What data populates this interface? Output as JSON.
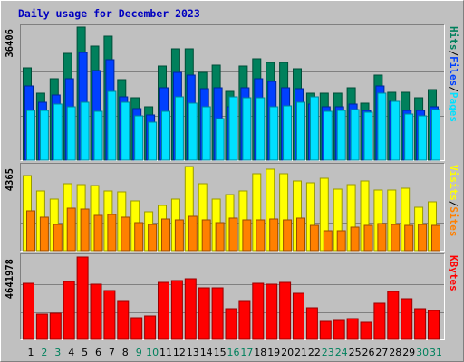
{
  "title": "Daily usage for December 2023",
  "legend_separator": "/",
  "chart_data": [
    {
      "type": "bar",
      "ylim": [
        0,
        36406
      ],
      "yticks": [
        36406
      ],
      "grid": true,
      "series": [
        {
          "name": "Hits",
          "color": "#00805c",
          "values": [
            25262,
            18327,
            22289,
            29224,
            36406,
            31205,
            33929,
            22042,
            17088,
            14612,
            25756,
            30462,
            30462,
            24023,
            26004,
            18822,
            25756,
            27738,
            26747,
            26747,
            25014,
            18327,
            18327,
            18327,
            19813,
            15602,
            23280,
            18574,
            18574,
            17088,
            19317
          ]
        },
        {
          "name": "Files",
          "color": "#0040ff",
          "values": [
            20308,
            15850,
            17832,
            22289,
            29472,
            24518,
            27490,
            17336,
            14117,
            12383,
            19813,
            24023,
            23280,
            19565,
            19813,
            14612,
            19813,
            22289,
            21546,
            19813,
            19565,
            15355,
            14612,
            14612,
            15355,
            13621,
            20308,
            16098,
            13621,
            13621,
            14612
          ]
        },
        {
          "name": "Pages",
          "color": "#00e0ff",
          "values": [
            13621,
            13621,
            15355,
            14612,
            15850,
            13374,
            18822,
            15850,
            12135,
            10402,
            13374,
            17336,
            15602,
            14612,
            11392,
            17336,
            17088,
            17088,
            14612,
            14860,
            15850,
            17336,
            13374,
            13621,
            13869,
            13126,
            18327,
            16098,
            12631,
            12135,
            13869
          ]
        }
      ]
    },
    {
      "type": "bar",
      "ylim": [
        0,
        4365
      ],
      "yticks": [
        4365
      ],
      "grid": true,
      "series": [
        {
          "name": "Visits",
          "color": "#ffff00",
          "values": [
            3896,
            3098,
            2676,
            3473,
            3426,
            3380,
            3098,
            3051,
            2582,
            2018,
            2347,
            2676,
            4365,
            3473,
            2676,
            2910,
            3098,
            3990,
            4225,
            3990,
            3614,
            3520,
            3755,
            3192,
            3426,
            3614,
            3145,
            3145,
            3239,
            2253,
            2535
          ]
        },
        {
          "name": "Sites",
          "color": "#ff8000",
          "values": [
            2065,
            1737,
            1361,
            2206,
            2159,
            1831,
            1878,
            1737,
            1455,
            1361,
            1643,
            1596,
            1784,
            1596,
            1455,
            1690,
            1596,
            1596,
            1643,
            1596,
            1690,
            1314,
            1033,
            1033,
            1220,
            1314,
            1408,
            1361,
            1314,
            1361,
            1314
          ]
        }
      ]
    },
    {
      "type": "bar",
      "ylim": [
        0,
        4641978
      ],
      "yticks": [
        4641978
      ],
      "grid": true,
      "categories": [
        "1",
        "2",
        "3",
        "4",
        "5",
        "6",
        "7",
        "8",
        "9",
        "10",
        "11",
        "12",
        "13",
        "14",
        "15",
        "16",
        "17",
        "18",
        "19",
        "20",
        "21",
        "22",
        "23",
        "24",
        "25",
        "26",
        "27",
        "28",
        "29",
        "30",
        "31"
      ],
      "category_colors": [
        "#000000",
        "#00805c",
        "#00805c",
        "#000000",
        "#000000",
        "#000000",
        "#000000",
        "#000000",
        "#00805c",
        "#00805c",
        "#000000",
        "#000000",
        "#000000",
        "#000000",
        "#000000",
        "#00805c",
        "#00805c",
        "#000000",
        "#000000",
        "#000000",
        "#000000",
        "#000000",
        "#00805c",
        "#00805c",
        "#000000",
        "#000000",
        "#000000",
        "#000000",
        "#000000",
        "#00805c",
        "#00805c"
      ],
      "series": [
        {
          "name": "KBytes",
          "color": "#ff0000",
          "values": [
            3162682,
            1428308,
            1479319,
            3264704,
            4641978,
            3111671,
            2754594,
            2142462,
            1224264,
            1326286,
            3213693,
            3315715,
            3417737,
            2907627,
            2907627,
            1734374,
            2142462,
            3162682,
            3111671,
            3213693,
            2601561,
            1785385,
            1020220,
            1071231,
            1173253,
            969209,
            2040440,
            2703583,
            2295495,
            1734374,
            1632352
          ]
        }
      ]
    }
  ]
}
